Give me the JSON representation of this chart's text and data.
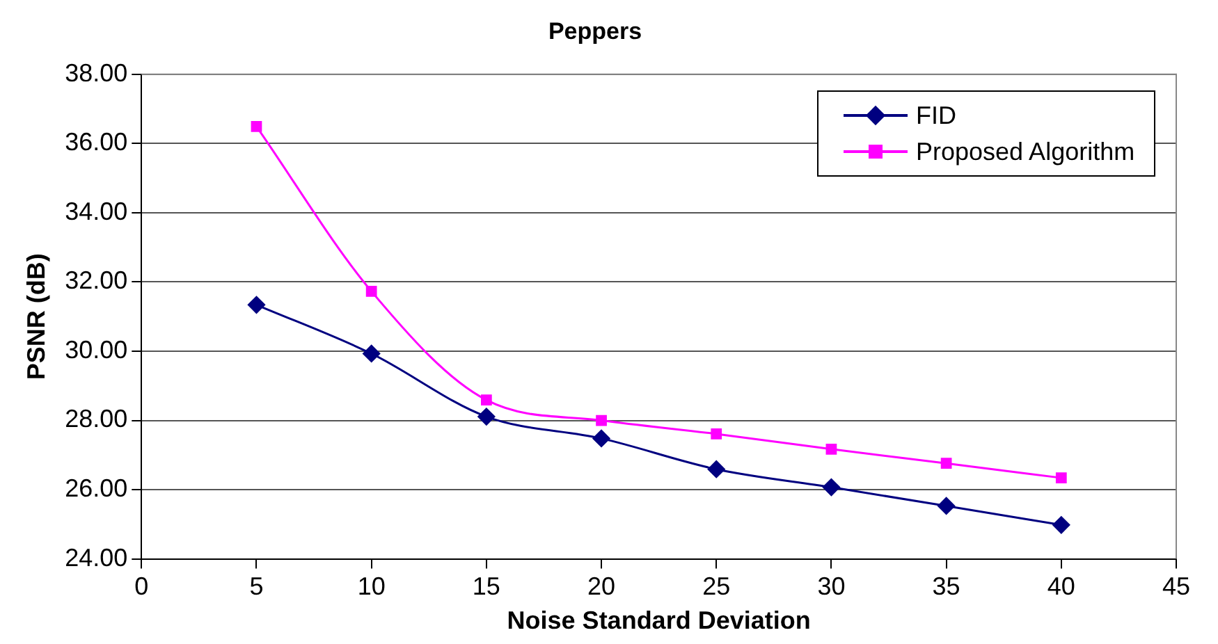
{
  "chart_data": {
    "type": "line",
    "title": "Peppers",
    "xlabel": "Noise Standard Deviation",
    "ylabel": "PSNR (dB)",
    "x": [
      5,
      10,
      15,
      20,
      25,
      30,
      35,
      40
    ],
    "series": [
      {
        "name": "FID",
        "color": "#000080",
        "marker": "diamond",
        "values": [
          31.34,
          29.93,
          28.11,
          27.48,
          26.59,
          26.07,
          25.53,
          24.98
        ]
      },
      {
        "name": "Proposed Algorithm",
        "color": "#ff00ff",
        "marker": "square",
        "values": [
          36.49,
          31.73,
          28.59,
          28.0,
          27.61,
          27.17,
          26.76,
          26.34
        ]
      }
    ],
    "xlim": [
      0,
      45
    ],
    "xticks": [
      0,
      5,
      10,
      15,
      20,
      25,
      30,
      35,
      40,
      45
    ],
    "ylim": [
      24,
      38
    ],
    "yticks": [
      {
        "value": 24,
        "label": "24.00"
      },
      {
        "value": 26,
        "label": "26.00"
      },
      {
        "value": 28,
        "label": "28.00"
      },
      {
        "value": 30,
        "label": "30.00"
      },
      {
        "value": 32,
        "label": "32.00"
      },
      {
        "value": 34,
        "label": "34.00"
      },
      {
        "value": 36,
        "label": "36.00"
      },
      {
        "value": 38,
        "label": "38.00"
      }
    ],
    "grid": "y",
    "legend": "top right"
  }
}
